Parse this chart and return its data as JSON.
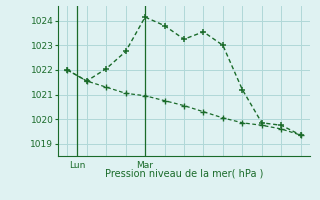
{
  "line1_x": [
    0,
    1,
    2,
    3,
    4,
    5,
    6,
    7,
    8,
    9,
    10,
    11,
    12
  ],
  "line1_y": [
    1022.0,
    1021.55,
    1022.05,
    1022.75,
    1024.15,
    1023.8,
    1023.25,
    1023.55,
    1023.0,
    1021.2,
    1019.85,
    1019.75,
    1019.35
  ],
  "line2_x": [
    0,
    1,
    2,
    3,
    4,
    5,
    6,
    7,
    8,
    9,
    10,
    11,
    12
  ],
  "line2_y": [
    1022.0,
    1021.55,
    1021.3,
    1021.05,
    1020.95,
    1020.75,
    1020.55,
    1020.3,
    1020.05,
    1019.85,
    1019.75,
    1019.6,
    1019.35
  ],
  "line_color": "#1a6b2a",
  "bg_color": "#dff2f2",
  "grid_color": "#b0d8d8",
  "axis_color": "#1a6b2a",
  "xlabel": "Pression niveau de la mer( hPa )",
  "yticks": [
    1019,
    1020,
    1021,
    1022,
    1023,
    1024
  ],
  "ylim": [
    1018.5,
    1024.6
  ],
  "xlim": [
    -0.5,
    12.5
  ],
  "lun_x": 0.5,
  "mar_x": 4.0,
  "vline_lun": 0.5,
  "vline_mar": 4.0,
  "xlabel_fontsize": 7,
  "tick_labelsize": 6.5,
  "figsize": [
    3.2,
    2.0
  ],
  "dpi": 100
}
